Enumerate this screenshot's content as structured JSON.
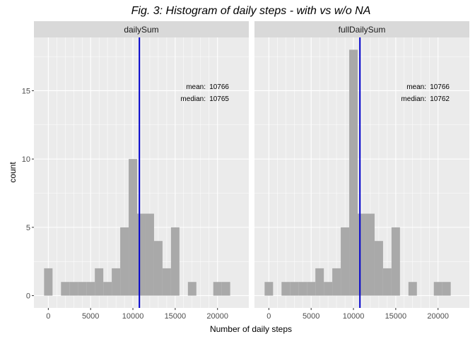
{
  "chart_data": {
    "type": "bar",
    "title": "Fig. 3: Histogram of daily steps - with vs w/o NA",
    "xlabel": "Number of daily steps",
    "ylabel": "count",
    "xlim": [
      -1700,
      23700
    ],
    "ylim": [
      -0.9,
      18.9
    ],
    "x_ticks": [
      0,
      5000,
      10000,
      15000,
      20000
    ],
    "x_tick_labels": [
      "0",
      "5000",
      "10000",
      "15000",
      "20000"
    ],
    "y_ticks": [
      0,
      5,
      10,
      15
    ],
    "y_tick_labels": [
      "0",
      "5",
      "10",
      "15"
    ],
    "grid": true,
    "bin_width": 1000,
    "bin_centers": [
      0,
      1000,
      2000,
      3000,
      4000,
      5000,
      6000,
      7000,
      8000,
      9000,
      10000,
      11000,
      12000,
      13000,
      14000,
      15000,
      16000,
      17000,
      18000,
      19000,
      20000,
      21000,
      22000
    ],
    "series_color": "#a9a9a9",
    "vline_color": "#0000cd",
    "panels": [
      {
        "strip": "dailySum",
        "counts": [
          2,
          0,
          1,
          1,
          1,
          1,
          2,
          1,
          2,
          5,
          10,
          6,
          6,
          4,
          2,
          5,
          0,
          1,
          0,
          0,
          1,
          1,
          0
        ],
        "mean_line": 10766,
        "mean_label": "mean:",
        "mean_value": "10766",
        "median_label": "median:",
        "median_value": "10765"
      },
      {
        "strip": "fullDailySum",
        "counts": [
          1,
          0,
          1,
          1,
          1,
          1,
          2,
          1,
          2,
          5,
          18,
          6,
          6,
          4,
          2,
          5,
          0,
          1,
          0,
          0,
          1,
          1,
          0
        ],
        "mean_line": 10766,
        "mean_label": "mean:",
        "mean_value": "10766",
        "median_label": "median:",
        "median_value": "10762"
      }
    ]
  }
}
